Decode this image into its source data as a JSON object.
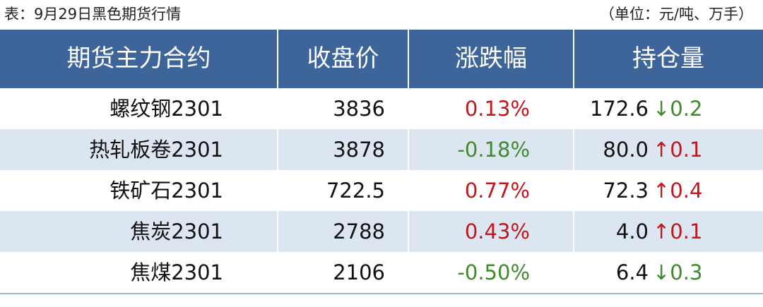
{
  "header": {
    "title": "表：9月29日黑色期货行情",
    "unit": "（单位：元/吨、万手）"
  },
  "table": {
    "columns": [
      "期货主力合约",
      "收盘价",
      "涨跌幅",
      "持仓量"
    ],
    "rows": [
      [
        "螺纹钢2301",
        "3836",
        "0.13%",
        "172.6",
        "↓0.2"
      ],
      [
        "热轧板卷2301",
        "3878",
        "-0.18%",
        "80.0",
        "↑0.1"
      ],
      [
        "铁矿石2301",
        "722.5",
        "0.77%",
        "72.3",
        "↑0.4"
      ],
      [
        "焦炭2301",
        "2788",
        "0.43%",
        "4.0",
        "↑0.1"
      ],
      [
        "焦煤2301",
        "2106",
        "-0.50%",
        "6.4",
        "↓0.3"
      ]
    ]
  }
}
